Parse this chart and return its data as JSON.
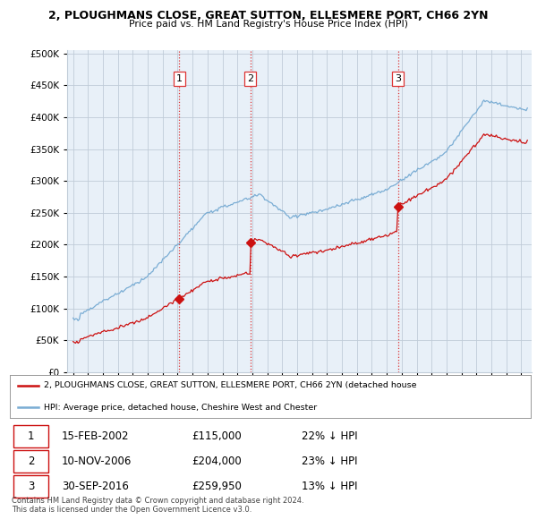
{
  "title": "2, PLOUGHMANS CLOSE, GREAT SUTTON, ELLESMERE PORT, CH66 2YN",
  "subtitle": "Price paid vs. HM Land Registry's House Price Index (HPI)",
  "ylim": [
    0,
    500000
  ],
  "yticks": [
    0,
    50000,
    100000,
    150000,
    200000,
    250000,
    300000,
    350000,
    400000,
    450000,
    500000
  ],
  "sale_dates_num": [
    2002.12,
    2006.86,
    2016.75
  ],
  "sale_prices": [
    115000,
    204000,
    259950
  ],
  "sale_labels": [
    "1",
    "2",
    "3"
  ],
  "vline_color": "#dd3333",
  "hpi_color": "#7aadd4",
  "sale_line_color": "#cc1111",
  "chart_bg": "#e8f0f8",
  "legend_label_red": "2, PLOUGHMANS CLOSE, GREAT SUTTON, ELLESMERE PORT, CH66 2YN (detached house",
  "legend_label_blue": "HPI: Average price, detached house, Cheshire West and Chester",
  "table_rows": [
    {
      "label": "1",
      "date": "15-FEB-2002",
      "price": "£115,000",
      "hpi": "22% ↓ HPI"
    },
    {
      "label": "2",
      "date": "10-NOV-2006",
      "price": "£204,000",
      "hpi": "23% ↓ HPI"
    },
    {
      "label": "3",
      "date": "30-SEP-2016",
      "price": "£259,950",
      "hpi": "13% ↓ HPI"
    }
  ],
  "footnote1": "Contains HM Land Registry data © Crown copyright and database right 2024.",
  "footnote2": "This data is licensed under the Open Government Licence v3.0.",
  "background_color": "#ffffff",
  "grid_color": "#c0ccd8"
}
